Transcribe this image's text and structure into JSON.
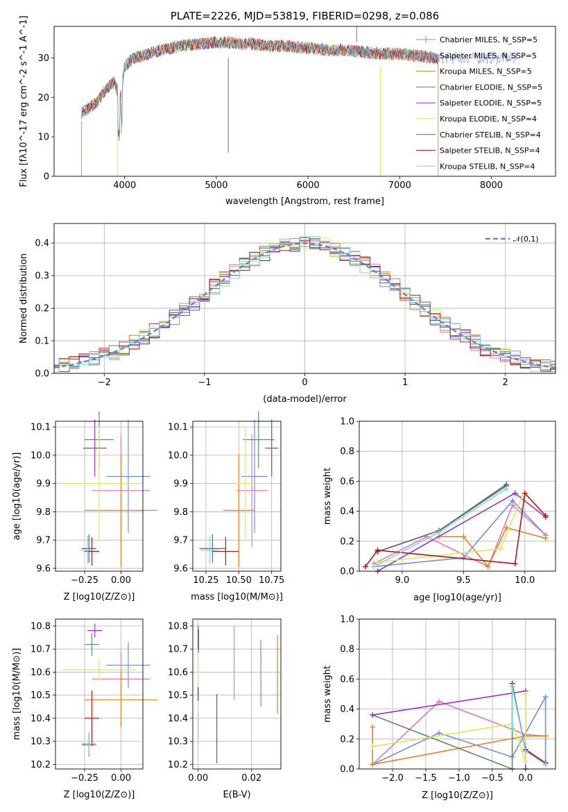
{
  "chart_data": [
    {
      "type": "line",
      "title": "PLATE=2226, MJD=53819, FIBERID=0298, z=0.086",
      "xlabel": "wavelength [Angstrom, rest frame]",
      "ylabel": "Flux [fλ10^-17 erg cm^-2 s^-1 A^-1]",
      "xlim": [
        3230,
        8700
      ],
      "ylim": [
        0,
        38
      ],
      "xticks": [
        "4000",
        "5000",
        "6000",
        "7000",
        "8000"
      ],
      "yticks": [
        "0",
        "10",
        "20",
        "30"
      ],
      "grid": false,
      "legend_position": "top-right",
      "spectrum_shape": {
        "x": [
          3530,
          3600,
          3700,
          3800,
          3880,
          3950,
          4000,
          4100,
          4250,
          4400,
          4600,
          4800,
          5000,
          5200,
          5400,
          5600,
          5800,
          6000,
          6200,
          6400,
          6600,
          6800,
          7000,
          7200,
          7400
        ],
        "values": [
          16,
          17,
          19,
          22,
          24,
          20,
          28,
          30,
          31,
          32,
          33,
          33.5,
          34,
          33.8,
          33.5,
          33,
          33,
          32.5,
          32,
          32,
          31.5,
          31,
          31,
          30.5,
          30
        ]
      },
      "series": [
        {
          "name": "Chabrier MILES, N_SSP=5",
          "color": "#6d8fd8",
          "marker": "+"
        },
        {
          "name": "Salpeter MILES, N_SSP=5",
          "color": "#e377c2"
        },
        {
          "name": "Kroupa MILES, N_SSP=5",
          "color": "#e6801a"
        },
        {
          "name": "Chabrier ELODIE, N_SSP=5",
          "color": "#5a8a6a"
        },
        {
          "name": "Salpeter ELODIE, N_SSP=5",
          "color": "#9b30c0"
        },
        {
          "name": "Kroupa ELODIE, N_SSP=4",
          "color": "#d4ef50"
        },
        {
          "name": "Chabrier STELIB, N_SSP=4",
          "color": "#606060"
        },
        {
          "name": "Salpeter STELIB, N_SSP=4",
          "color": "#b21414"
        },
        {
          "name": "Kroupa STELIB, N_SSP=4",
          "color": "#7fd3dd"
        }
      ]
    },
    {
      "type": "line",
      "xlabel": "(data-model)/error",
      "ylabel": "Normed distribution",
      "xlim": [
        -2.5,
        2.5
      ],
      "ylim": [
        0,
        0.46
      ],
      "xticks": [
        "−2",
        "−1",
        "0",
        "1",
        "2"
      ],
      "yticks": [
        "0.0",
        "0.1",
        "0.2",
        "0.3",
        "0.4"
      ],
      "grid": true,
      "legend_position": "top-right",
      "legend": "𝒩(0,1)",
      "reference_curve": "normal pdf, mean 0, sd 1",
      "histogram_bin_width": 0.1
    },
    {
      "type": "scatter",
      "xlabel": "Z [log10(Z/Z⊙)]",
      "ylabel": "age  [log10(age/yr)]",
      "xticks": [
        "−0.25",
        "0.00"
      ],
      "yticks": [
        "9.6",
        "9.7",
        "9.8",
        "9.9",
        "10.0",
        "10.1"
      ],
      "xlim": [
        -0.45,
        0.15
      ],
      "ylim": [
        9.59,
        10.12
      ],
      "grid": true,
      "points": [
        {
          "color": "#6d8fd8",
          "x": 0.05,
          "xerr": 0.15,
          "y": 9.925,
          "yerr": 0.2
        },
        {
          "color": "#e377c2",
          "x": 0.0,
          "xerr": 0.2,
          "y": 9.875,
          "yerr": 0.2
        },
        {
          "color": "#e6801a",
          "x": 0.0,
          "xerr": 0.25,
          "y": 9.805,
          "yerr": 0.2
        },
        {
          "color": "#5a8a6a",
          "x": -0.15,
          "xerr": 0.1,
          "y": 10.055,
          "yerr": 0.1
        },
        {
          "color": "#9b30c0",
          "x": -0.18,
          "xerr": 0.08,
          "y": 10.025,
          "yerr": 0.1
        },
        {
          "color": "#d4ef50",
          "x": -0.15,
          "xerr": 0.25,
          "y": 9.9,
          "yerr": 0.2
        },
        {
          "color": "#606060",
          "x": -0.22,
          "xerr": 0.05,
          "y": 9.67,
          "yerr": 0.05
        },
        {
          "color": "#b21414",
          "x": -0.2,
          "xerr": 0.05,
          "y": 9.66,
          "yerr": 0.05
        },
        {
          "color": "#7fd3dd",
          "x": -0.23,
          "xerr": 0.05,
          "y": 9.665,
          "yerr": 0.05
        }
      ]
    },
    {
      "type": "scatter",
      "xlabel": "mass [log10(M/M⊙)]",
      "ylabel": "",
      "xticks": [
        "10.25",
        "10.50",
        "10.75"
      ],
      "yticks": [
        "9.6",
        "9.7",
        "9.8",
        "9.9",
        "10.0",
        "10.1"
      ],
      "xlim": [
        10.15,
        10.82
      ],
      "ylim": [
        9.59,
        10.12
      ],
      "grid": true,
      "points": [
        {
          "color": "#6d8fd8",
          "x": 10.62,
          "xerr": 0.1,
          "y": 9.925,
          "yerr": 0.2
        },
        {
          "color": "#e377c2",
          "x": 10.6,
          "xerr": 0.12,
          "y": 9.875,
          "yerr": 0.2
        },
        {
          "color": "#e6801a",
          "x": 10.5,
          "xerr": 0.12,
          "y": 9.805,
          "yerr": 0.2
        },
        {
          "color": "#5a8a6a",
          "x": 10.65,
          "xerr": 0.12,
          "y": 10.055,
          "yerr": 0.1
        },
        {
          "color": "#9b30c0",
          "x": 10.75,
          "xerr": 0.05,
          "y": 10.025,
          "yerr": 0.1
        },
        {
          "color": "#d4ef50",
          "x": 10.55,
          "xerr": 0.07,
          "y": 9.9,
          "yerr": 0.2
        },
        {
          "color": "#606060",
          "x": 10.3,
          "xerr": 0.1,
          "y": 9.67,
          "yerr": 0.05
        },
        {
          "color": "#b21414",
          "x": 10.4,
          "xerr": 0.1,
          "y": 9.66,
          "yerr": 0.05
        },
        {
          "color": "#7fd3dd",
          "x": 10.28,
          "xerr": 0.07,
          "y": 9.665,
          "yerr": 0.05
        }
      ]
    },
    {
      "type": "line",
      "xlabel": "age  [log10(age/yr)]",
      "ylabel": "mass weight",
      "xticks": [
        "9.0",
        "9.5",
        "10.0"
      ],
      "yticks": [
        "0.0",
        "0.2",
        "0.4",
        "0.6",
        "0.8",
        "1.0"
      ],
      "xlim": [
        8.65,
        10.25
      ],
      "ylim": [
        0,
        1
      ],
      "grid": true,
      "series": [
        {
          "color": "#6d8fd8",
          "x": [
            8.77,
            9.5,
            9.9,
            10.17
          ],
          "y": [
            0.03,
            0.09,
            0.47,
            0.24
          ]
        },
        {
          "color": "#e377c2",
          "x": [
            8.77,
            9.2,
            9.7,
            9.9,
            10.17
          ],
          "y": [
            0.05,
            0.23,
            0.03,
            0.44,
            0.24
          ]
        },
        {
          "color": "#e6801a",
          "x": [
            9.3,
            9.5,
            9.7,
            9.85,
            10.17
          ],
          "y": [
            0.23,
            0.23,
            0.03,
            0.29,
            0.22
          ]
        },
        {
          "color": "#5a8a6a",
          "x": [
            8.8,
            9.3,
            9.85
          ],
          "y": [
            0.13,
            0.27,
            0.58
          ]
        },
        {
          "color": "#9b30c0",
          "x": [
            8.8,
            9.92,
            10.17
          ],
          "y": [
            0.0,
            0.52,
            0.36
          ]
        },
        {
          "color": "#d4ef50",
          "x": [
            8.8,
            9.8,
            9.98
          ],
          "y": [
            0.06,
            0.15,
            0.5
          ]
        },
        {
          "color": "#606060",
          "x": [
            8.8,
            9.3,
            9.85
          ],
          "y": [
            0.13,
            0.27,
            0.57
          ]
        },
        {
          "color": "#b21414",
          "x": [
            8.7,
            8.8,
            9.92,
            10.0,
            10.17
          ],
          "y": [
            0.03,
            0.14,
            0.05,
            0.52,
            0.37
          ]
        },
        {
          "color": "#7fd3dd",
          "x": [
            8.77,
            9.3,
            9.85
          ],
          "y": [
            0.03,
            0.26,
            0.55
          ]
        }
      ]
    },
    {
      "type": "scatter",
      "xlabel": "Z [log10(Z/Z⊙)]",
      "ylabel": "mass [log10(M/M⊙)]",
      "xticks": [
        "−0.25",
        "0.00"
      ],
      "yticks": [
        "10.2",
        "10.3",
        "10.4",
        "10.5",
        "10.6",
        "10.7",
        "10.8"
      ],
      "xlim": [
        -0.45,
        0.15
      ],
      "ylim": [
        10.18,
        10.83
      ],
      "grid": true,
      "points": [
        {
          "color": "#6d8fd8",
          "x": 0.05,
          "xerr": 0.15,
          "y": 10.63,
          "yerr": 0.1
        },
        {
          "color": "#e377c2",
          "x": 0.0,
          "xerr": 0.2,
          "y": 10.57,
          "yerr": 0.12
        },
        {
          "color": "#e6801a",
          "x": 0.0,
          "xerr": 0.25,
          "y": 10.48,
          "yerr": 0.12
        },
        {
          "color": "#5a8a6a",
          "x": -0.2,
          "xerr": 0.05,
          "y": 10.72,
          "yerr": 0.05
        },
        {
          "color": "#9b30c0",
          "x": -0.18,
          "xerr": 0.05,
          "y": 10.78,
          "yerr": 0.03
        },
        {
          "color": "#d4ef50",
          "x": -0.15,
          "xerr": 0.25,
          "y": 10.61,
          "yerr": 0.05
        },
        {
          "color": "#606060",
          "x": -0.22,
          "xerr": 0.05,
          "y": 10.285,
          "yerr": 0.05
        },
        {
          "color": "#b21414",
          "x": -0.2,
          "xerr": 0.05,
          "y": 10.4,
          "yerr": 0.12
        },
        {
          "color": "#7fd3dd",
          "x": -0.22,
          "xerr": 0.05,
          "y": 10.29,
          "yerr": 0.05
        }
      ]
    },
    {
      "type": "scatter",
      "xlabel": "E(B-V)",
      "ylabel": "",
      "xticks": [
        "0.00",
        "0.02"
      ],
      "yticks": [
        "10.2",
        "10.3",
        "10.4",
        "10.5",
        "10.6",
        "10.7",
        "10.8"
      ],
      "xlim": [
        -0.002,
        0.031
      ],
      "ylim": [
        10.18,
        10.83
      ],
      "grid": true,
      "points": [
        {
          "color": "#6d8fd8",
          "x": 0.0235,
          "y": 10.595,
          "yerr": 0.145
        },
        {
          "color": "#e377c2",
          "x": 0.0135,
          "y": 10.64,
          "yerr": 0.16
        },
        {
          "color": "#e6801a",
          "x": 0.0297,
          "y": 10.59,
          "yerr": 0.17
        },
        {
          "color": "#5a8a6a",
          "x": 0.0002,
          "y": 10.735,
          "yerr": 0.05
        },
        {
          "color": "#9b30c0",
          "x": 0.0,
          "y": 10.75,
          "yerr": 0.05
        },
        {
          "color": "#d4ef50",
          "x": 0.0,
          "y": 10.605,
          "yerr": 0.05
        },
        {
          "color": "#606060",
          "x": 0.007,
          "y": 10.355,
          "yerr": 0.15
        },
        {
          "color": "#b21414",
          "x": 0.0,
          "y": 10.505,
          "yerr": 0.03
        },
        {
          "color": "#7fd3dd",
          "x": 0.0,
          "y": 10.355,
          "yerr": 0.07
        }
      ]
    },
    {
      "type": "line",
      "xlabel": "Z [log10(Z/Z⊙)]",
      "ylabel": "mass weight",
      "xticks": [
        "−2.0",
        "−1.5",
        "−1.0",
        "−0.5",
        "0.0"
      ],
      "yticks": [
        "0.0",
        "0.2",
        "0.4",
        "0.6",
        "0.8",
        "1.0"
      ],
      "xlim": [
        -2.5,
        0.45
      ],
      "ylim": [
        0,
        1
      ],
      "grid": true,
      "series": [
        {
          "color": "#6d8fd8",
          "x": [
            -2.3,
            -1.3,
            -0.2,
            0.3,
            0.3
          ],
          "y": [
            0.03,
            0.24,
            0.08,
            0.48,
            0.03
          ]
        },
        {
          "color": "#e377c2",
          "x": [
            -2.3,
            -1.3,
            0.0,
            0.3
          ],
          "y": [
            0.03,
            0.45,
            0.23,
            0.22
          ]
        },
        {
          "color": "#e6801a",
          "x": [
            -2.3,
            -2.3,
            0.0,
            0.3
          ],
          "y": [
            0.28,
            0.03,
            0.22,
            0.22
          ]
        },
        {
          "color": "#5a8a6a",
          "x": [
            -2.3,
            -0.2,
            -0.2,
            0.0
          ],
          "y": [
            0.36,
            0.0,
            0.57,
            0.12
          ]
        },
        {
          "color": "#9b30c0",
          "x": [
            -2.3,
            0.0,
            0.0
          ],
          "y": [
            0.36,
            0.52,
            0.0
          ]
        },
        {
          "color": "#d4ef50",
          "x": [
            -2.3,
            -0.2,
            0.0,
            0.0
          ],
          "y": [
            0.15,
            0.3,
            0.05,
            0.5
          ]
        },
        {
          "color": "#606060",
          "x": [
            -0.2,
            -0.2,
            0.0,
            0.3
          ],
          "y": [
            0.27,
            0.57,
            0.12,
            0.04
          ]
        },
        {
          "color": "#b21414",
          "x": [
            -0.2,
            0.0,
            0.3
          ],
          "y": [
            0.55,
            0.13,
            0.04
          ]
        },
        {
          "color": "#7fd3dd",
          "x": [
            -0.2,
            -0.2,
            0.0,
            0.3
          ],
          "y": [
            0.27,
            0.55,
            0.12,
            0.03
          ]
        }
      ]
    }
  ]
}
